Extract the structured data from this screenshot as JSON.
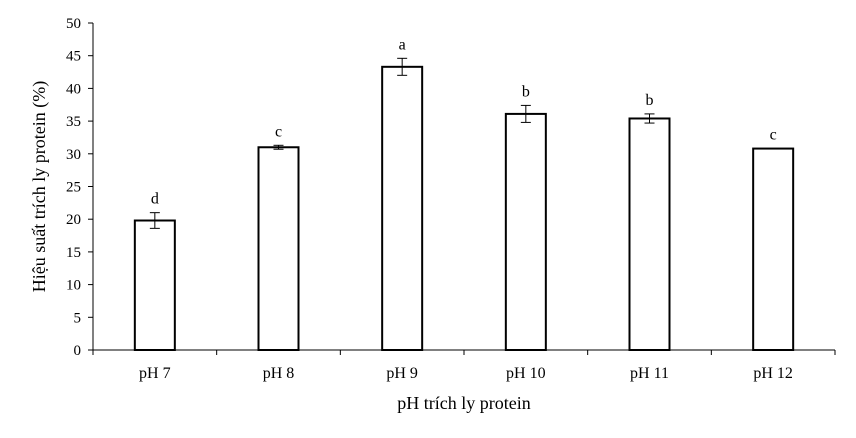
{
  "chart_data": {
    "type": "bar",
    "title": "",
    "xlabel": "pH trích ly protein",
    "ylabel": "Hiệu suất trích ly protein (%)",
    "ylim": [
      0,
      50
    ],
    "yticks": [
      0,
      5,
      10,
      15,
      20,
      25,
      30,
      35,
      40,
      45,
      50
    ],
    "grid": false,
    "categories": [
      "pH 7",
      "pH 8",
      "pH 9",
      "pH 10",
      "pH 11",
      "pH 12"
    ],
    "values": [
      19.8,
      31.0,
      43.3,
      36.1,
      35.4,
      30.8
    ],
    "errors": [
      1.2,
      0.3,
      1.3,
      1.3,
      0.7,
      0.0
    ],
    "annotations": [
      "d",
      "c",
      "a",
      "b",
      "b",
      "c"
    ]
  }
}
